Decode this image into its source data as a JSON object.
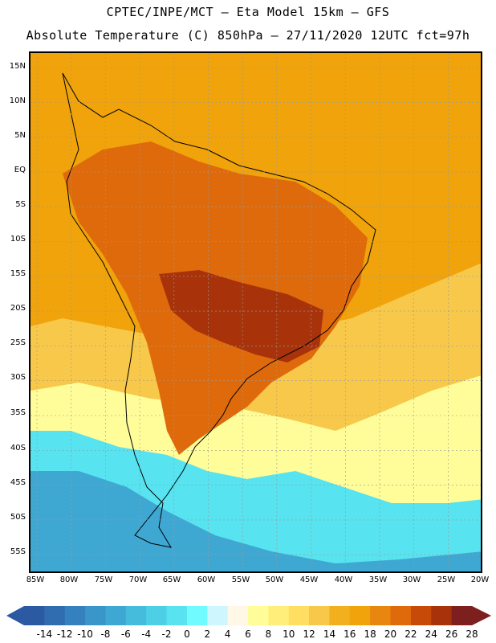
{
  "title_line1": "CPTEC/INPE/MCT –  Eta Model 15km – GFS",
  "title_line2": "Absolute Temperature (C) 850hPa – 27/11/2020 12UTC fct=97h",
  "latitudes": [
    "15N",
    "10N",
    "5N",
    "EQ",
    "5S",
    "10S",
    "15S",
    "20S",
    "25S",
    "30S",
    "35S",
    "40S",
    "45S",
    "50S",
    "55S"
  ],
  "longitudes": [
    "85W",
    "80W",
    "75W",
    "70W",
    "65W",
    "60W",
    "55W",
    "50W",
    "45W",
    "40W",
    "35W",
    "30W",
    "25W",
    "20W"
  ],
  "colorbar": {
    "labels": [
      "-14",
      "-12",
      "-10",
      "-8",
      "-6",
      "-4",
      "-2",
      "0",
      "2",
      "4",
      "6",
      "8",
      "10",
      "12",
      "14",
      "16",
      "18",
      "20",
      "22",
      "24",
      "26",
      "28"
    ],
    "colors": [
      "#2b5aa3",
      "#2f6db0",
      "#3581bd",
      "#3a95c8",
      "#3fa8d2",
      "#45bcdc",
      "#4dd0e6",
      "#57e3ef",
      "#6ffbff",
      "#cdf6ff",
      "#fff8e6",
      "#fffc9a",
      "#ffee7a",
      "#ffde62",
      "#f7c84a",
      "#f2b01e",
      "#f0a30a",
      "#e8860f",
      "#de6a0c",
      "#c84a08",
      "#a8320a",
      "#7d1f1f"
    ]
  },
  "temperature_regions": {
    "ocean_north": "#f0a30a",
    "continent_warm": "#de6a0c",
    "continent_hot": "#a8320a",
    "south_mid": "#f7c84a",
    "south_light": "#fffc9a",
    "south_cool": "#57e3ef",
    "south_cold": "#3fa8d2"
  }
}
